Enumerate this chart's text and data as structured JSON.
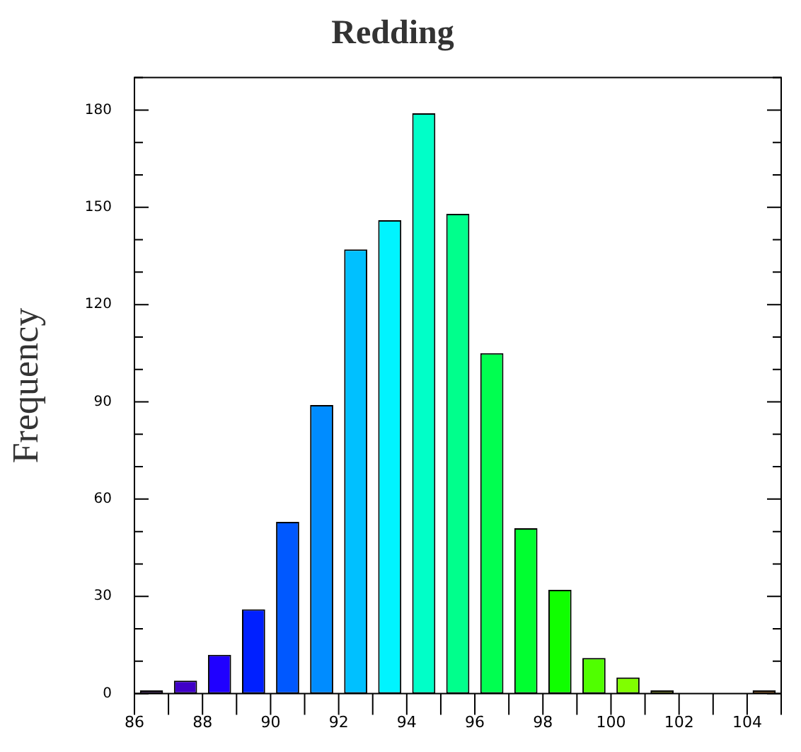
{
  "chart_data": {
    "type": "histogram",
    "title": "Redding",
    "ylabel": "Frequency",
    "bins": [
      86,
      87,
      88,
      89,
      90,
      91,
      92,
      93,
      94,
      95,
      96,
      97,
      98,
      99,
      100,
      101,
      102,
      103,
      104,
      105
    ],
    "values": [
      1,
      4,
      12,
      26,
      53,
      89,
      137,
      146,
      179,
      148,
      105,
      51,
      32,
      11,
      5,
      1,
      0,
      0,
      1
    ],
    "colors": [
      "#30005a",
      "#4000c8",
      "#2000ff",
      "#0020ff",
      "#0058ff",
      "#008cff",
      "#00c0ff",
      "#00f4ff",
      "#00ffc8",
      "#00ff8c",
      "#00ff50",
      "#00ff30",
      "#10ff00",
      "#50ff00",
      "#80ff00",
      "#90a000",
      "#a08000",
      "#b07000",
      "#b86000"
    ],
    "xlim": [
      86,
      105
    ],
    "xticks": [
      86,
      {
        "value": 87,
        "label": null
      },
      88,
      {
        "value": 89,
        "label": null
      },
      90,
      {
        "value": 91,
        "label": null
      },
      92,
      {
        "value": 93,
        "label": null
      },
      94,
      {
        "value": 95,
        "label": null
      },
      96,
      {
        "value": 97,
        "label": null
      },
      98,
      {
        "value": 99,
        "label": null
      },
      100,
      {
        "value": 101,
        "label": null
      },
      102,
      {
        "value": 103,
        "label": null
      },
      104,
      {
        "value": 105,
        "label": null
      }
    ],
    "ylim": [
      0,
      190
    ],
    "yticks": [
      0,
      {
        "value": 10,
        "label": null
      },
      {
        "value": 20,
        "label": null
      },
      30,
      {
        "value": 40,
        "label": null
      },
      {
        "value": 50,
        "label": null
      },
      60,
      {
        "value": 70,
        "label": null
      },
      {
        "value": 80,
        "label": null
      },
      90,
      {
        "value": 100,
        "label": null
      },
      {
        "value": 110,
        "label": null
      },
      120,
      {
        "value": 130,
        "label": null
      },
      {
        "value": 140,
        "label": null
      },
      150,
      {
        "value": 160,
        "label": null
      },
      {
        "value": 170,
        "label": null
      },
      180,
      {
        "value": 190,
        "label": null
      }
    ],
    "grid": false,
    "legend": false
  }
}
